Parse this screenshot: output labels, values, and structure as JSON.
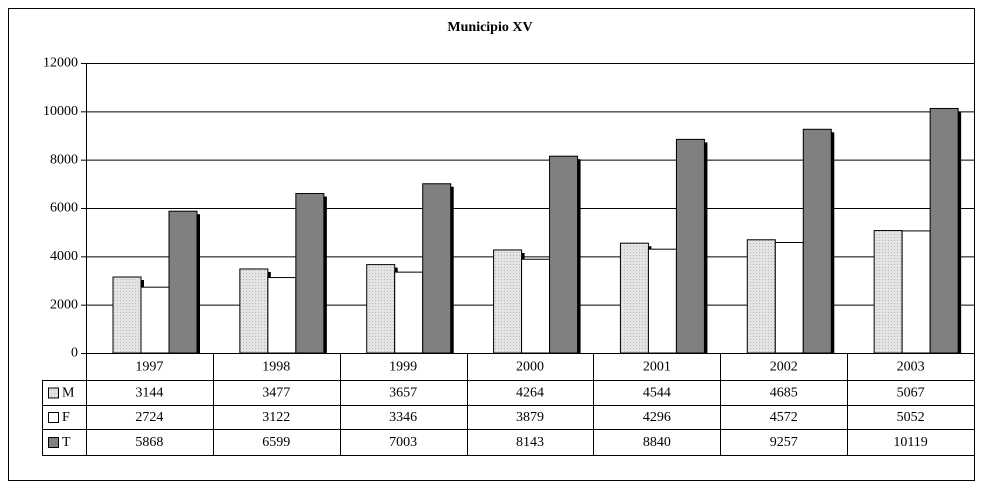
{
  "chart_data": {
    "type": "bar",
    "title": "Municipio XV",
    "categories": [
      "1997",
      "1998",
      "1999",
      "2000",
      "2001",
      "2002",
      "2003"
    ],
    "series": [
      {
        "name": "M",
        "color": "#dddddd",
        "values": [
          3144,
          3477,
          3657,
          4264,
          4544,
          4685,
          5067
        ]
      },
      {
        "name": "F",
        "color": "#ffffff",
        "values": [
          2724,
          3122,
          3346,
          3879,
          4296,
          4572,
          5052
        ]
      },
      {
        "name": "T",
        "color": "#808080",
        "values": [
          5868,
          6599,
          7003,
          8143,
          8840,
          9257,
          10119
        ]
      }
    ],
    "ylim": [
      0,
      12000
    ],
    "yticks": [
      0,
      2000,
      4000,
      6000,
      8000,
      10000,
      12000
    ],
    "grid": true
  }
}
